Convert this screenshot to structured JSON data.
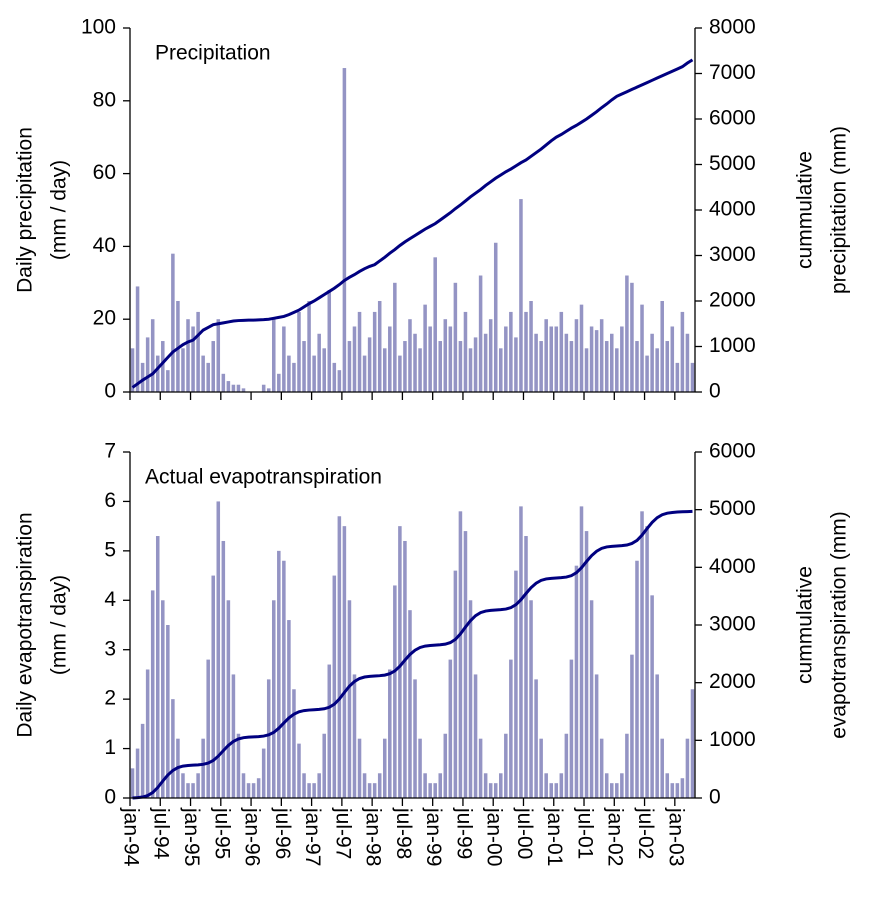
{
  "chart_data": [
    {
      "type": "bar",
      "title": "Precipitation",
      "y_label": [
        "Daily precipitation",
        "(mm / day)"
      ],
      "y2_label": [
        "cummulative",
        "precipitation (mm)"
      ],
      "ylim": [
        0,
        100
      ],
      "yticks": [
        0,
        20,
        40,
        60,
        80,
        100
      ],
      "y2lim": [
        0,
        8000
      ],
      "y2ticks": [
        0,
        1000,
        2000,
        3000,
        4000,
        5000,
        6000,
        7000,
        8000
      ],
      "series": [
        {
          "type": "bar",
          "color": "#9494c4",
          "values": [
            12,
            29,
            8,
            15,
            20,
            10,
            14,
            6,
            38,
            25,
            12,
            20,
            18,
            22,
            10,
            8,
            14,
            20,
            5,
            3,
            2,
            2,
            1,
            0,
            0,
            0,
            2,
            1,
            20,
            5,
            18,
            10,
            8,
            22,
            14,
            25,
            10,
            16,
            12,
            28,
            8,
            6,
            89,
            14,
            18,
            22,
            10,
            15,
            22,
            25,
            12,
            18,
            30,
            10,
            14,
            20,
            16,
            12,
            24,
            18,
            37,
            14,
            20,
            18,
            30,
            14,
            22,
            12,
            15,
            32,
            16,
            20,
            41,
            12,
            18,
            22,
            15,
            53,
            22,
            25,
            16,
            14,
            20,
            18,
            18,
            22,
            16,
            14,
            20,
            24,
            12,
            18,
            17,
            20,
            14,
            16,
            12,
            18,
            32,
            30,
            14,
            24,
            10,
            16,
            12,
            25,
            14,
            18,
            8,
            22,
            16,
            8
          ]
        },
        {
          "type": "line",
          "color": "#000080",
          "axis": "y2",
          "values": [
            100,
            180,
            260,
            330,
            400,
            520,
            640,
            760,
            880,
            960,
            1040,
            1100,
            1140,
            1250,
            1360,
            1420,
            1480,
            1500,
            1520,
            1540,
            1560,
            1570,
            1575,
            1580,
            1580,
            1585,
            1590,
            1600,
            1620,
            1640,
            1660,
            1700,
            1750,
            1800,
            1870,
            1940,
            2000,
            2070,
            2140,
            2210,
            2280,
            2360,
            2450,
            2520,
            2580,
            2650,
            2710,
            2760,
            2800,
            2880,
            2960,
            3050,
            3130,
            3220,
            3300,
            3370,
            3440,
            3510,
            3580,
            3640,
            3700,
            3780,
            3860,
            3940,
            4030,
            4110,
            4200,
            4290,
            4370,
            4450,
            4540,
            4620,
            4700,
            4770,
            4840,
            4900,
            4970,
            5040,
            5100,
            5180,
            5260,
            5340,
            5430,
            5520,
            5600,
            5660,
            5730,
            5800,
            5860,
            5930,
            6000,
            6080,
            6160,
            6250,
            6330,
            6420,
            6500,
            6550,
            6600,
            6650,
            6700,
            6750,
            6800,
            6850,
            6900,
            6950,
            7000,
            7050,
            7100,
            7150,
            7230,
            7300
          ]
        }
      ]
    },
    {
      "type": "bar",
      "title": "Actual evapotranspiration",
      "y_label": [
        "Daily evapotranspiration",
        "(mm / day)"
      ],
      "y2_label": [
        "cummulative",
        "evapotranspiration (mm)"
      ],
      "ylim": [
        0,
        7
      ],
      "yticks": [
        0,
        1,
        2,
        3,
        4,
        5,
        6,
        7
      ],
      "y2lim": [
        0,
        6000
      ],
      "y2ticks": [
        0,
        1000,
        2000,
        3000,
        4000,
        5000,
        6000
      ],
      "categories": [
        "jan-94",
        null,
        null,
        null,
        null,
        null,
        "jul-94",
        null,
        null,
        null,
        null,
        null,
        "jan-95",
        null,
        null,
        null,
        null,
        null,
        "jul-95",
        null,
        null,
        null,
        null,
        null,
        "jan-96",
        null,
        null,
        null,
        null,
        null,
        "jul-96",
        null,
        null,
        null,
        null,
        null,
        "jan-97",
        null,
        null,
        null,
        null,
        null,
        "jul-97",
        null,
        null,
        null,
        null,
        null,
        "jan-98",
        null,
        null,
        null,
        null,
        null,
        "jul-98",
        null,
        null,
        null,
        null,
        null,
        "jan-99",
        null,
        null,
        null,
        null,
        null,
        "jul-99",
        null,
        null,
        null,
        null,
        null,
        "jan-00",
        null,
        null,
        null,
        null,
        null,
        "jul-00",
        null,
        null,
        null,
        null,
        null,
        "jan-01",
        null,
        null,
        null,
        null,
        null,
        "jul-01",
        null,
        null,
        null,
        null,
        null,
        "jan-02",
        null,
        null,
        null,
        null,
        null,
        "jul-02",
        null,
        null,
        null,
        null,
        null,
        "jan-03",
        null,
        null,
        null
      ],
      "series": [
        {
          "type": "bar",
          "color": "#9494c4",
          "values": [
            0.6,
            1.0,
            1.5,
            2.6,
            4.2,
            5.3,
            4.0,
            3.5,
            2.0,
            1.2,
            0.5,
            0.3,
            0.3,
            0.5,
            1.2,
            2.8,
            4.5,
            6.0,
            5.2,
            4.0,
            2.5,
            1.3,
            0.5,
            0.3,
            0.3,
            0.4,
            1.0,
            2.4,
            4.0,
            5.0,
            4.8,
            3.6,
            2.2,
            1.1,
            0.5,
            0.3,
            0.3,
            0.5,
            1.3,
            2.7,
            4.5,
            5.7,
            5.5,
            4.0,
            2.5,
            1.2,
            0.5,
            0.3,
            0.3,
            0.5,
            1.2,
            2.6,
            4.3,
            5.5,
            5.2,
            3.8,
            2.4,
            1.2,
            0.5,
            0.3,
            0.3,
            0.5,
            1.3,
            2.8,
            4.6,
            5.8,
            5.4,
            4.0,
            2.5,
            1.2,
            0.5,
            0.3,
            0.3,
            0.5,
            1.3,
            2.8,
            4.6,
            5.9,
            5.3,
            4.0,
            2.4,
            1.2,
            0.5,
            0.3,
            0.3,
            0.5,
            1.3,
            2.8,
            4.7,
            5.9,
            5.4,
            4.0,
            2.5,
            1.2,
            0.5,
            0.3,
            0.3,
            0.5,
            1.3,
            2.9,
            4.8,
            5.8,
            5.5,
            4.1,
            2.5,
            1.2,
            0.5,
            0.3,
            0.3,
            0.4,
            1.2,
            2.2
          ]
        },
        {
          "type": "line",
          "color": "#000080",
          "axis": "y2",
          "values": [
            0,
            6,
            17,
            42,
            94,
            182,
            294,
            398,
            478,
            528,
            553,
            564,
            570,
            575,
            584,
            606,
            651,
            727,
            822,
            912,
            981,
            1024,
            1046,
            1055,
            1060,
            1065,
            1074,
            1095,
            1138,
            1210,
            1302,
            1389,
            1454,
            1495,
            1516,
            1525,
            1530,
            1536,
            1547,
            1573,
            1627,
            1717,
            1831,
            1939,
            2020,
            2072,
            2098,
            2109,
            2115,
            2121,
            2131,
            2155,
            2203,
            2286,
            2391,
            2489,
            2563,
            2610,
            2634,
            2644,
            2650,
            2657,
            2668,
            2695,
            2751,
            2845,
            2964,
            3076,
            3161,
            3215,
            3242,
            3253,
            3260,
            3266,
            3276,
            3301,
            3352,
            3438,
            3546,
            3648,
            3725,
            3774,
            3799,
            3809,
            3815,
            3821,
            3831,
            3856,
            3907,
            3993,
            4101,
            4203,
            4280,
            4329,
            4354,
            4364,
            4370,
            4376,
            4387,
            4414,
            4467,
            4559,
            4672,
            4779,
            4861,
            4912,
            4939,
            4951,
            4960,
            4963,
            4966,
            4970
          ]
        }
      ]
    }
  ]
}
